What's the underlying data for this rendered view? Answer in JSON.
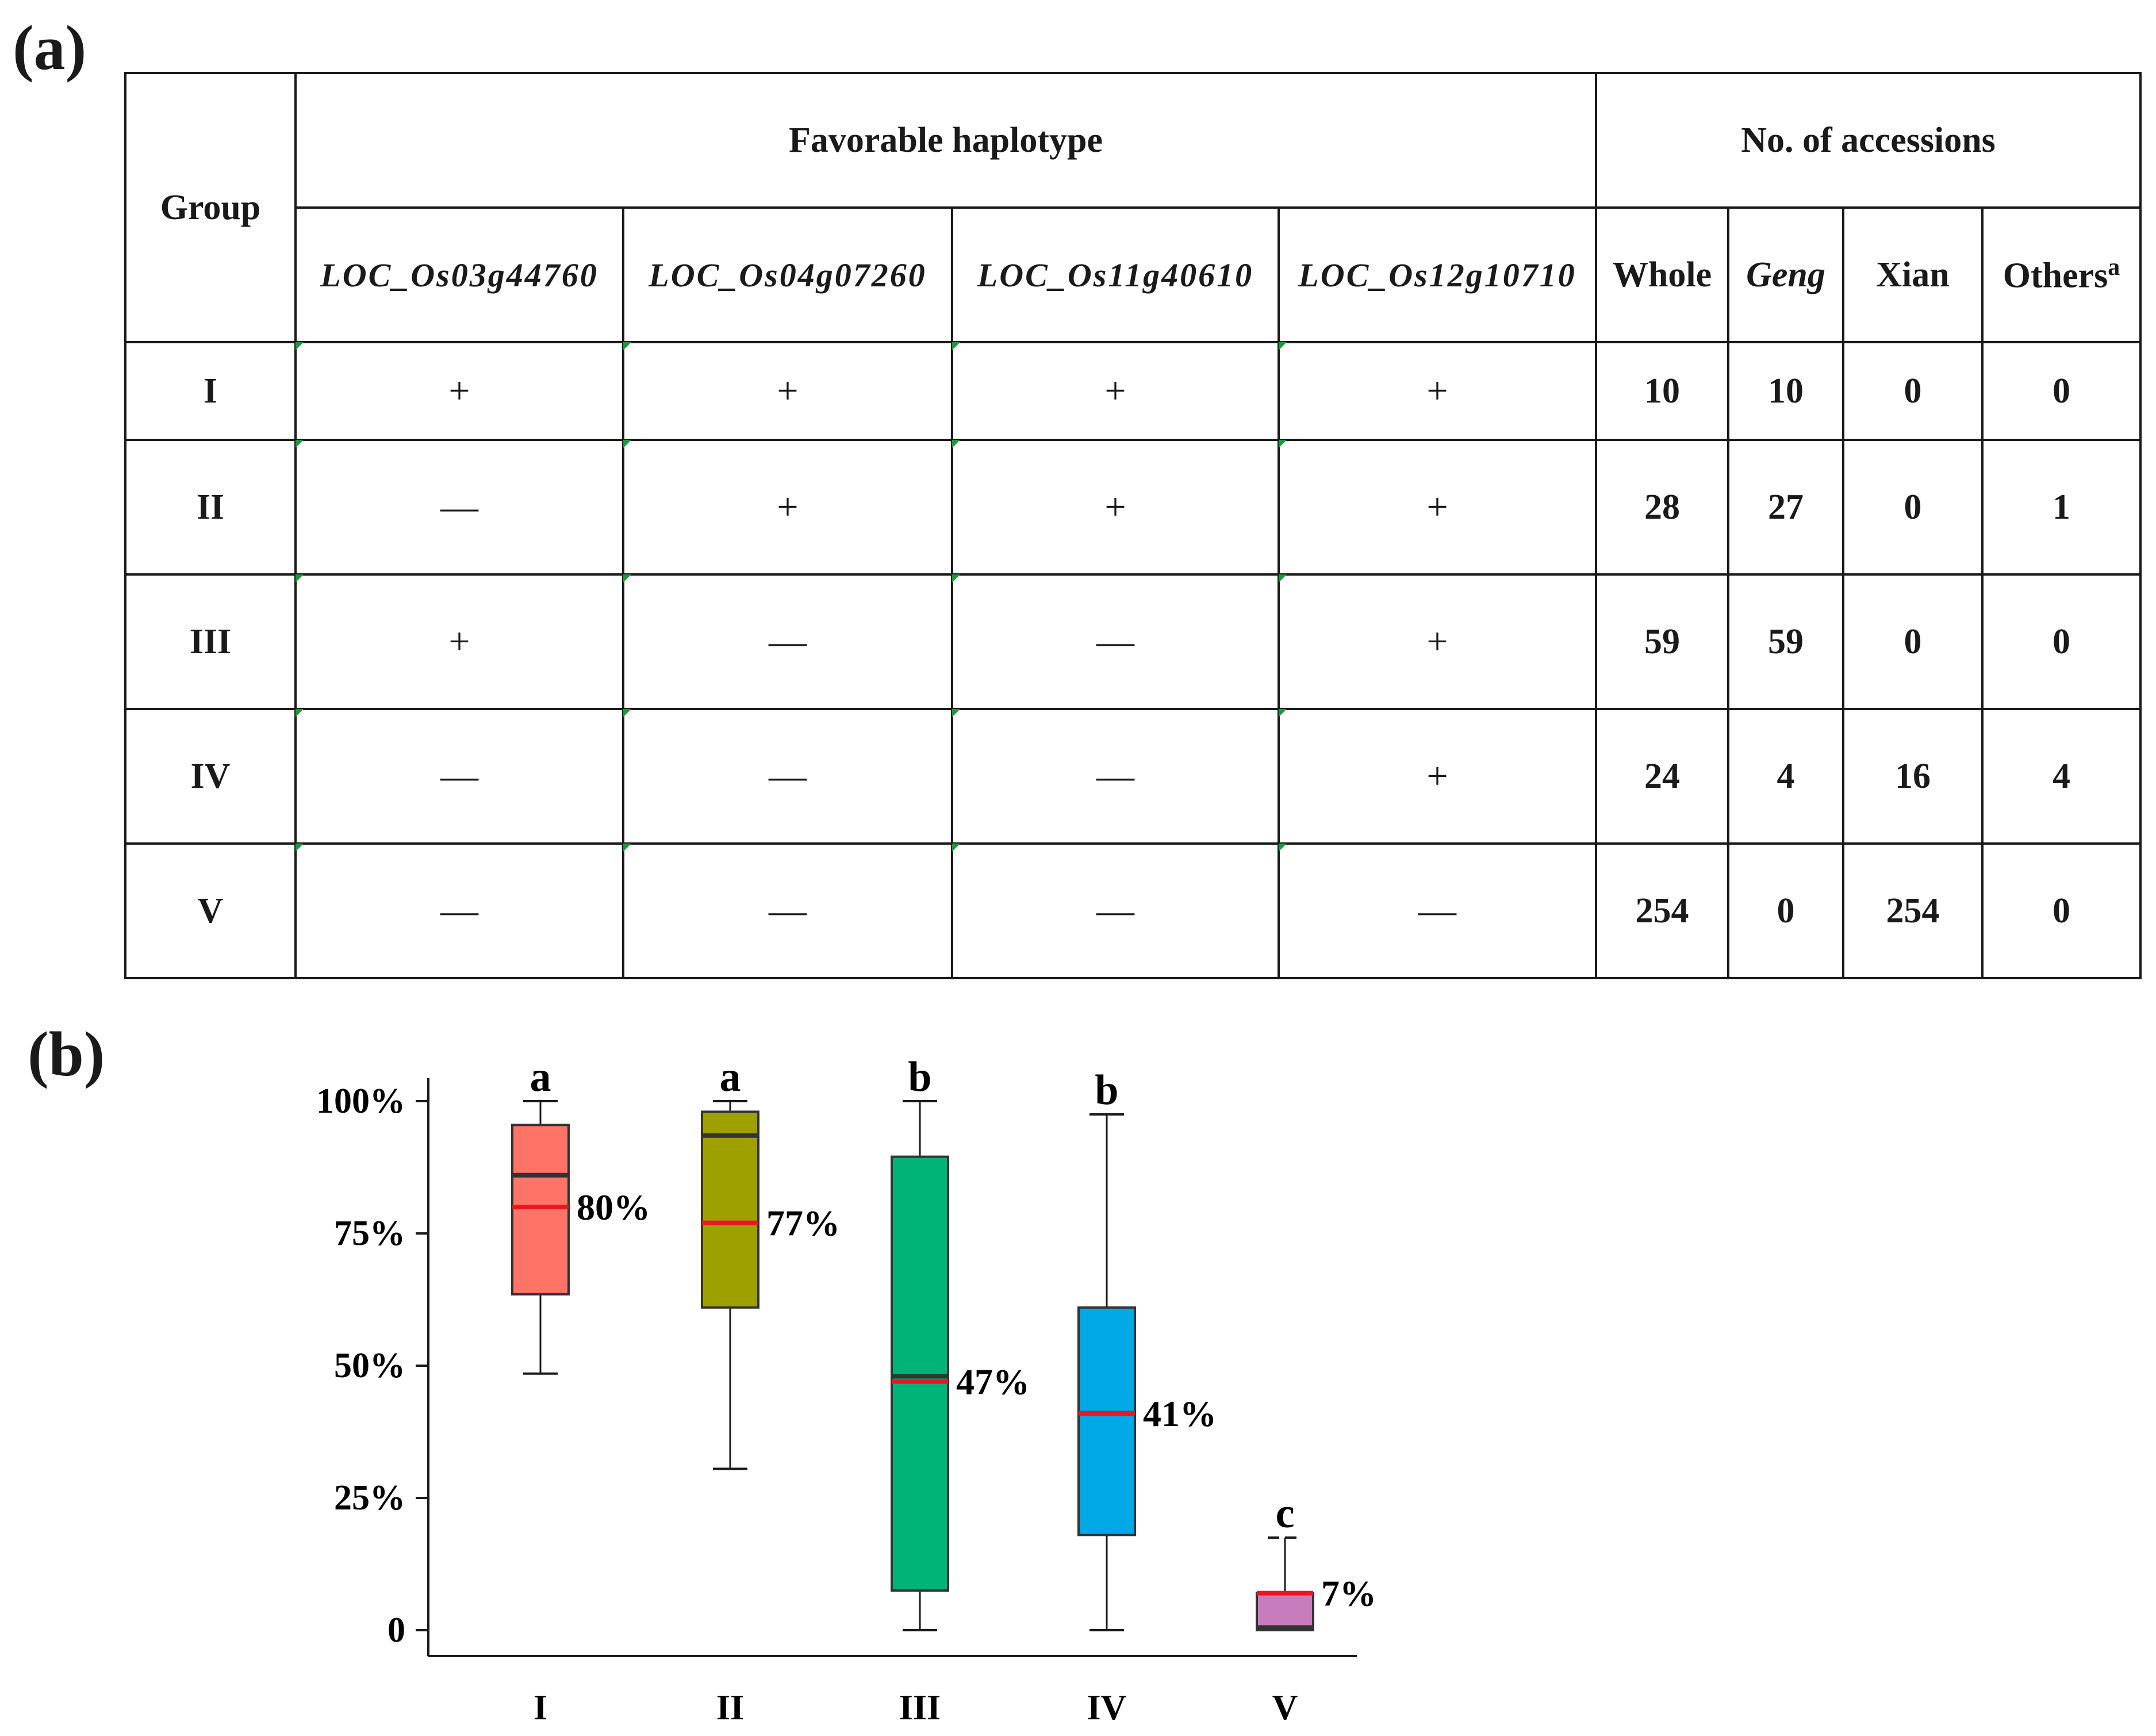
{
  "panel_labels": {
    "a": "(a)",
    "b": "(b)"
  },
  "table": {
    "group_header": "Group",
    "haplotype_header": "Favorable haplotype",
    "accessions_header": "No. of accessions",
    "genes": [
      "LOC_Os03g44760",
      "LOC_Os04g07260",
      "LOC_Os11g40610",
      "LOC_Os12g10710"
    ],
    "count_columns": [
      "Whole",
      "Geng",
      "Xian",
      "Others"
    ],
    "others_superscript": "a",
    "rows": [
      {
        "group": "I",
        "marks": [
          "+",
          "+",
          "+",
          "+"
        ],
        "counts": [
          "10",
          "10",
          "0",
          "0"
        ]
      },
      {
        "group": "II",
        "marks": [
          "—",
          "+",
          "+",
          "+"
        ],
        "counts": [
          "28",
          "27",
          "0",
          "1"
        ]
      },
      {
        "group": "III",
        "marks": [
          "+",
          "—",
          "—",
          "+"
        ],
        "counts": [
          "59",
          "59",
          "0",
          "0"
        ]
      },
      {
        "group": "IV",
        "marks": [
          "—",
          "—",
          "—",
          "+"
        ],
        "counts": [
          "24",
          "4",
          "16",
          "4"
        ]
      },
      {
        "group": "V",
        "marks": [
          "—",
          "—",
          "—",
          "—"
        ],
        "counts": [
          "254",
          "0",
          "254",
          "0"
        ]
      }
    ]
  },
  "chart_data": {
    "type": "box",
    "categories": [
      "I",
      "II",
      "III",
      "IV",
      "V"
    ],
    "ylim": [
      0,
      100
    ],
    "yticks": [
      {
        "value": 0,
        "label": "0"
      },
      {
        "value": 25,
        "label": "25%"
      },
      {
        "value": 50,
        "label": "50%"
      },
      {
        "value": 75,
        "label": "75%"
      },
      {
        "value": 100,
        "label": "100%"
      }
    ],
    "boxes": [
      {
        "category": "I",
        "min": 48.5,
        "q1": 63.5,
        "median": 86,
        "q3": 95.5,
        "max": 100,
        "mean": 80,
        "mean_label": "80%",
        "letter": "a",
        "color": "#ff7466"
      },
      {
        "category": "II",
        "min": 30.5,
        "q1": 61,
        "median": 93.5,
        "q3": 98,
        "max": 100,
        "mean": 77,
        "mean_label": "77%",
        "letter": "a",
        "color": "#9ea000"
      },
      {
        "category": "III",
        "min": 0,
        "q1": 7.5,
        "median": 48,
        "q3": 89.5,
        "max": 100,
        "mean": 47,
        "mean_label": "47%",
        "letter": "b",
        "color": "#00b477"
      },
      {
        "category": "IV",
        "min": 0,
        "q1": 18,
        "median": 41,
        "q3": 61,
        "max": 97.5,
        "mean": 41,
        "mean_label": "41%",
        "letter": "b",
        "color": "#00a9e5"
      },
      {
        "category": "V",
        "min": 0,
        "q1": 0,
        "median": 0.5,
        "q3": 7,
        "max": 17.5,
        "mean": 7,
        "mean_label": "7%",
        "letter": "c",
        "color": "#c77cbd"
      }
    ],
    "median_color": "#333333",
    "mean_color": "#e8191e",
    "grid": false
  }
}
